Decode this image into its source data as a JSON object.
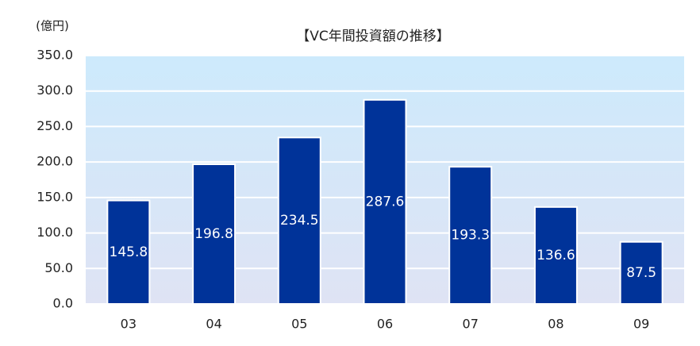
{
  "chart_data": {
    "type": "bar",
    "title": "【VC年間投資額の推移】",
    "y_label": "(億円)",
    "categories": [
      "03",
      "04",
      "05",
      "06",
      "07",
      "08",
      "09"
    ],
    "values": [
      145.8,
      196.8,
      234.5,
      287.6,
      193.3,
      136.6,
      87.5
    ],
    "color": "#003399",
    "ylim": [
      0,
      350
    ],
    "yticks": [
      {
        "value": 0,
        "label": "0.0"
      },
      {
        "value": 50,
        "label": "50.0"
      },
      {
        "value": 100,
        "label": "100.0"
      },
      {
        "value": 150,
        "label": "150.0"
      },
      {
        "value": 200,
        "label": "200.0"
      },
      {
        "value": 250,
        "label": "250.0"
      },
      {
        "value": 300,
        "label": "300.0"
      },
      {
        "value": 350,
        "label": "350.0"
      }
    ],
    "grid": true
  }
}
